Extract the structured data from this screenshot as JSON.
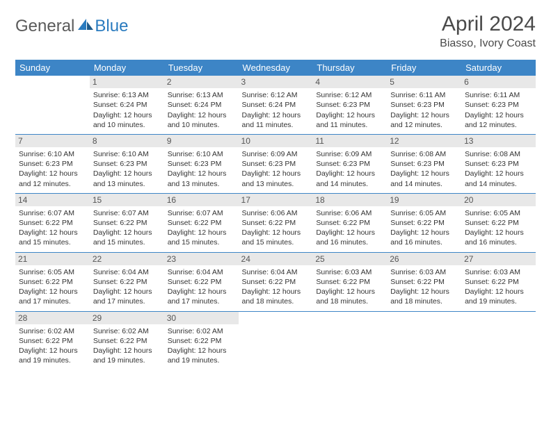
{
  "brand": {
    "part1": "General",
    "part2": "Blue"
  },
  "title": "April 2024",
  "location": "Biasso, Ivory Coast",
  "colors": {
    "header_bg": "#3d85c6",
    "header_text": "#ffffff",
    "daynum_bg": "#e8e8e8",
    "row_divider": "#3d85c6",
    "text": "#333333",
    "background": "#ffffff"
  },
  "fonts": {
    "title_size": 30,
    "location_size": 16,
    "dayhead_size": 13,
    "cell_size": 10.5
  },
  "day_headers": [
    "Sunday",
    "Monday",
    "Tuesday",
    "Wednesday",
    "Thursday",
    "Friday",
    "Saturday"
  ],
  "weeks": [
    [
      {
        "day": "",
        "sunrise": "",
        "sunset": "",
        "daylight": ""
      },
      {
        "day": "1",
        "sunrise": "Sunrise: 6:13 AM",
        "sunset": "Sunset: 6:24 PM",
        "daylight": "Daylight: 12 hours and 10 minutes."
      },
      {
        "day": "2",
        "sunrise": "Sunrise: 6:13 AM",
        "sunset": "Sunset: 6:24 PM",
        "daylight": "Daylight: 12 hours and 10 minutes."
      },
      {
        "day": "3",
        "sunrise": "Sunrise: 6:12 AM",
        "sunset": "Sunset: 6:24 PM",
        "daylight": "Daylight: 12 hours and 11 minutes."
      },
      {
        "day": "4",
        "sunrise": "Sunrise: 6:12 AM",
        "sunset": "Sunset: 6:23 PM",
        "daylight": "Daylight: 12 hours and 11 minutes."
      },
      {
        "day": "5",
        "sunrise": "Sunrise: 6:11 AM",
        "sunset": "Sunset: 6:23 PM",
        "daylight": "Daylight: 12 hours and 12 minutes."
      },
      {
        "day": "6",
        "sunrise": "Sunrise: 6:11 AM",
        "sunset": "Sunset: 6:23 PM",
        "daylight": "Daylight: 12 hours and 12 minutes."
      }
    ],
    [
      {
        "day": "7",
        "sunrise": "Sunrise: 6:10 AM",
        "sunset": "Sunset: 6:23 PM",
        "daylight": "Daylight: 12 hours and 12 minutes."
      },
      {
        "day": "8",
        "sunrise": "Sunrise: 6:10 AM",
        "sunset": "Sunset: 6:23 PM",
        "daylight": "Daylight: 12 hours and 13 minutes."
      },
      {
        "day": "9",
        "sunrise": "Sunrise: 6:10 AM",
        "sunset": "Sunset: 6:23 PM",
        "daylight": "Daylight: 12 hours and 13 minutes."
      },
      {
        "day": "10",
        "sunrise": "Sunrise: 6:09 AM",
        "sunset": "Sunset: 6:23 PM",
        "daylight": "Daylight: 12 hours and 13 minutes."
      },
      {
        "day": "11",
        "sunrise": "Sunrise: 6:09 AM",
        "sunset": "Sunset: 6:23 PM",
        "daylight": "Daylight: 12 hours and 14 minutes."
      },
      {
        "day": "12",
        "sunrise": "Sunrise: 6:08 AM",
        "sunset": "Sunset: 6:23 PM",
        "daylight": "Daylight: 12 hours and 14 minutes."
      },
      {
        "day": "13",
        "sunrise": "Sunrise: 6:08 AM",
        "sunset": "Sunset: 6:23 PM",
        "daylight": "Daylight: 12 hours and 14 minutes."
      }
    ],
    [
      {
        "day": "14",
        "sunrise": "Sunrise: 6:07 AM",
        "sunset": "Sunset: 6:22 PM",
        "daylight": "Daylight: 12 hours and 15 minutes."
      },
      {
        "day": "15",
        "sunrise": "Sunrise: 6:07 AM",
        "sunset": "Sunset: 6:22 PM",
        "daylight": "Daylight: 12 hours and 15 minutes."
      },
      {
        "day": "16",
        "sunrise": "Sunrise: 6:07 AM",
        "sunset": "Sunset: 6:22 PM",
        "daylight": "Daylight: 12 hours and 15 minutes."
      },
      {
        "day": "17",
        "sunrise": "Sunrise: 6:06 AM",
        "sunset": "Sunset: 6:22 PM",
        "daylight": "Daylight: 12 hours and 15 minutes."
      },
      {
        "day": "18",
        "sunrise": "Sunrise: 6:06 AM",
        "sunset": "Sunset: 6:22 PM",
        "daylight": "Daylight: 12 hours and 16 minutes."
      },
      {
        "day": "19",
        "sunrise": "Sunrise: 6:05 AM",
        "sunset": "Sunset: 6:22 PM",
        "daylight": "Daylight: 12 hours and 16 minutes."
      },
      {
        "day": "20",
        "sunrise": "Sunrise: 6:05 AM",
        "sunset": "Sunset: 6:22 PM",
        "daylight": "Daylight: 12 hours and 16 minutes."
      }
    ],
    [
      {
        "day": "21",
        "sunrise": "Sunrise: 6:05 AM",
        "sunset": "Sunset: 6:22 PM",
        "daylight": "Daylight: 12 hours and 17 minutes."
      },
      {
        "day": "22",
        "sunrise": "Sunrise: 6:04 AM",
        "sunset": "Sunset: 6:22 PM",
        "daylight": "Daylight: 12 hours and 17 minutes."
      },
      {
        "day": "23",
        "sunrise": "Sunrise: 6:04 AM",
        "sunset": "Sunset: 6:22 PM",
        "daylight": "Daylight: 12 hours and 17 minutes."
      },
      {
        "day": "24",
        "sunrise": "Sunrise: 6:04 AM",
        "sunset": "Sunset: 6:22 PM",
        "daylight": "Daylight: 12 hours and 18 minutes."
      },
      {
        "day": "25",
        "sunrise": "Sunrise: 6:03 AM",
        "sunset": "Sunset: 6:22 PM",
        "daylight": "Daylight: 12 hours and 18 minutes."
      },
      {
        "day": "26",
        "sunrise": "Sunrise: 6:03 AM",
        "sunset": "Sunset: 6:22 PM",
        "daylight": "Daylight: 12 hours and 18 minutes."
      },
      {
        "day": "27",
        "sunrise": "Sunrise: 6:03 AM",
        "sunset": "Sunset: 6:22 PM",
        "daylight": "Daylight: 12 hours and 19 minutes."
      }
    ],
    [
      {
        "day": "28",
        "sunrise": "Sunrise: 6:02 AM",
        "sunset": "Sunset: 6:22 PM",
        "daylight": "Daylight: 12 hours and 19 minutes."
      },
      {
        "day": "29",
        "sunrise": "Sunrise: 6:02 AM",
        "sunset": "Sunset: 6:22 PM",
        "daylight": "Daylight: 12 hours and 19 minutes."
      },
      {
        "day": "30",
        "sunrise": "Sunrise: 6:02 AM",
        "sunset": "Sunset: 6:22 PM",
        "daylight": "Daylight: 12 hours and 19 minutes."
      },
      {
        "day": "",
        "sunrise": "",
        "sunset": "",
        "daylight": ""
      },
      {
        "day": "",
        "sunrise": "",
        "sunset": "",
        "daylight": ""
      },
      {
        "day": "",
        "sunrise": "",
        "sunset": "",
        "daylight": ""
      },
      {
        "day": "",
        "sunrise": "",
        "sunset": "",
        "daylight": ""
      }
    ]
  ]
}
